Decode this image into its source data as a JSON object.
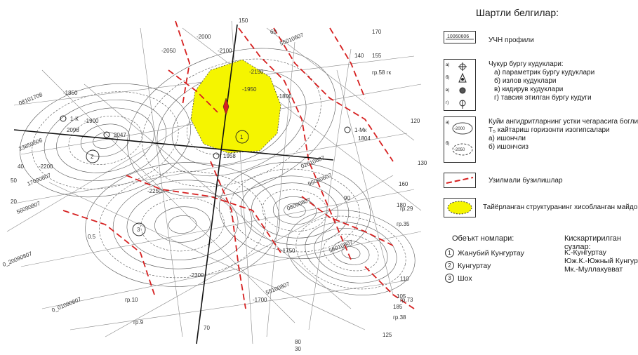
{
  "legend": {
    "title": "Шартли белгилар:",
    "profile_box_code": "10060606",
    "profile_label": "УЧН профили",
    "wells": {
      "title": "Чукур бургу кудуклари:",
      "items": [
        "а) параметрик бургу кудуклари",
        "б) излов  кудуклари",
        "в) кидирув кудуклари",
        "г) тавсия этилган бургу кудуги"
      ],
      "letters": [
        "а)",
        "б)",
        "в)",
        "г)"
      ]
    },
    "isolines": {
      "lines": [
        "Куйи ангидритларнинг устки чегарасига боглик",
        "Т₅ кайтариш горизонти изогипсалари",
        "а) ишончли",
        "б) ишончсиз"
      ],
      "sample_a": "-2000",
      "sample_b": "-2050",
      "letters": [
        "а)",
        "б)"
      ]
    },
    "faults_label": "Узилмали бузилишлар",
    "structure_label": "Тайёрланган структуранинг хисобланган майдони"
  },
  "objects": {
    "title": "Обеъкт номлари:",
    "items": [
      {
        "num": "1",
        "name": "Жанубий Кунгуртау"
      },
      {
        "num": "2",
        "name": "Кунгуртау"
      },
      {
        "num": "3",
        "name": "Шох"
      }
    ]
  },
  "abbreviations": {
    "title": "Кискартирилган сузлар:",
    "items": [
      "К.-Кунгуртау",
      "Юж.К.-Южный Кунгуртау",
      "Мк.-Муллакувват"
    ]
  },
  "map_labels": {
    "contours": [
      "-2000",
      "-2050",
      "-2100",
      "-2150",
      "-1950",
      "-1900",
      "-1850",
      "-1800",
      "-2200",
      "-2250",
      "-2300",
      "-1700",
      "-1750"
    ],
    "profiles": [
      "08101708",
      "23850606",
      "17090807",
      "56090807",
      "0_20090807",
      "0_01090807",
      "08090807",
      "02010607",
      "55010807",
      "55100807",
      "96060607",
      "55010607"
    ],
    "profile_numbers": [
      "150",
      "60",
      "170",
      "140",
      "155",
      "120",
      "130",
      "160",
      "180",
      "185",
      "110",
      "105",
      "125",
      "70",
      "80",
      "30",
      "20",
      "50",
      "40",
      "90",
      "0.5"
    ],
    "grid_refs": [
      "гр.58 гк",
      "гр.29",
      "гр.35",
      "гр.10",
      "гр.38",
      "гр.73",
      "гр.9"
    ],
    "wells": [
      "1-Мк",
      "1-К",
      "1804",
      "2098",
      "2047",
      "1958"
    ],
    "object_numbers": [
      "1",
      "2",
      "3"
    ]
  },
  "colors": {
    "structure_fill": "#f5f500",
    "fault": "#d62020",
    "contour": "#555555",
    "profile": "#888888",
    "main_profile": "#111111"
  }
}
